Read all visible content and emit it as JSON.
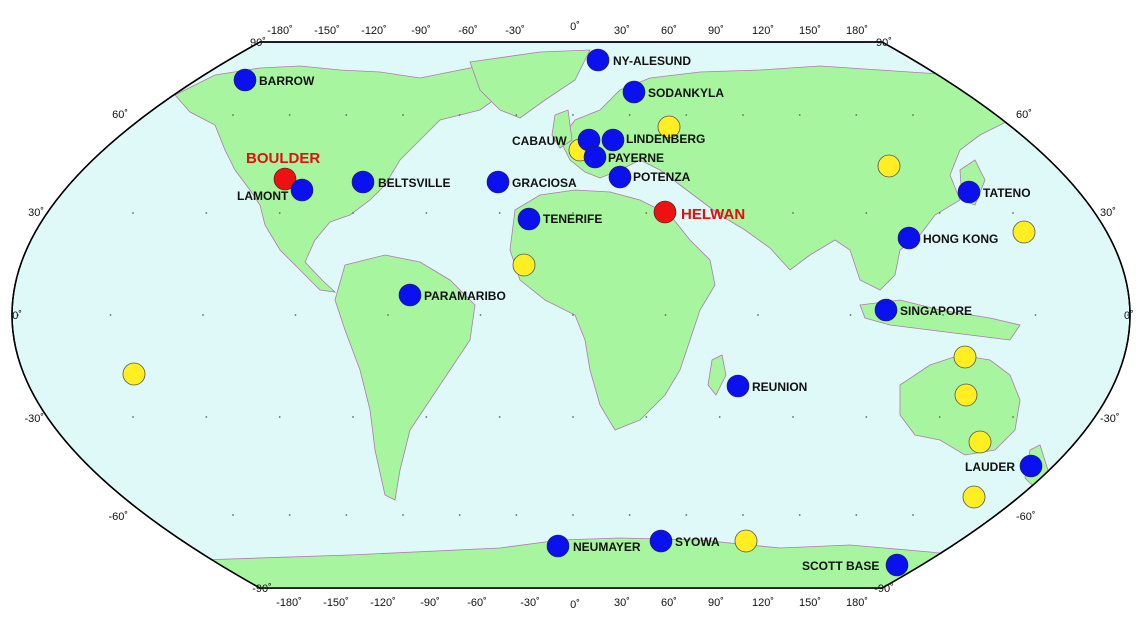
{
  "map": {
    "projection": "Robinson",
    "ocean_color": "#dff8f8",
    "land_color": "#a8f5a0",
    "border_color": "#b07ab0",
    "graticule": "dots every 30°",
    "lon_ticks_top": [
      "-180˚",
      "-150˚",
      "-120˚",
      "-90˚",
      "-60˚",
      "-30˚",
      "0˚",
      "30˚",
      "60˚",
      "90˚",
      "120˚",
      "150˚",
      "180˚"
    ],
    "lon_ticks_bottom": [
      "-180˚",
      "-150˚",
      "-120˚",
      "-90˚",
      "-60˚",
      "-30˚",
      "0˚",
      "30˚",
      "60˚",
      "90˚",
      "120˚",
      "150˚",
      "180˚"
    ],
    "corner_labels": {
      "top_left": "90˚",
      "top_right": "90˚",
      "bottom_left": "-90˚",
      "bottom_right": "-90˚"
    },
    "lat_ticks": [
      "60˚",
      "30˚",
      "0˚",
      "-30˚",
      "-60˚"
    ]
  },
  "marker_colors": {
    "blue": "#0a10ee",
    "red": "#ee1111",
    "yellow": "#ffee22"
  },
  "stations": [
    {
      "name": "BARROW",
      "color": "blue"
    },
    {
      "name": "NY-ALESUND",
      "color": "blue"
    },
    {
      "name": "SODANKYLA",
      "color": "blue"
    },
    {
      "name": "CABAUW",
      "color": "blue"
    },
    {
      "name": "LINDENBERG",
      "color": "blue"
    },
    {
      "name": "PAYERNE",
      "color": "blue"
    },
    {
      "name": "POTENZA",
      "color": "blue"
    },
    {
      "name": "BOULDER",
      "color": "red"
    },
    {
      "name": "LAMONT",
      "color": "blue"
    },
    {
      "name": "BELTSVILLE",
      "color": "blue"
    },
    {
      "name": "GRACIOSA",
      "color": "blue"
    },
    {
      "name": "TENERIFE",
      "color": "blue"
    },
    {
      "name": "HELWAN",
      "color": "red"
    },
    {
      "name": "TATENO",
      "color": "blue"
    },
    {
      "name": "HONG KONG",
      "color": "blue"
    },
    {
      "name": "PARAMARIBO",
      "color": "blue"
    },
    {
      "name": "SINGAPORE",
      "color": "blue"
    },
    {
      "name": "REUNION",
      "color": "blue"
    },
    {
      "name": "LAUDER",
      "color": "blue"
    },
    {
      "name": "NEUMAYER",
      "color": "blue"
    },
    {
      "name": "SYOWA",
      "color": "blue"
    },
    {
      "name": "SCOTT BASE",
      "color": "blue"
    }
  ],
  "unlabeled_markers_color": "yellow"
}
